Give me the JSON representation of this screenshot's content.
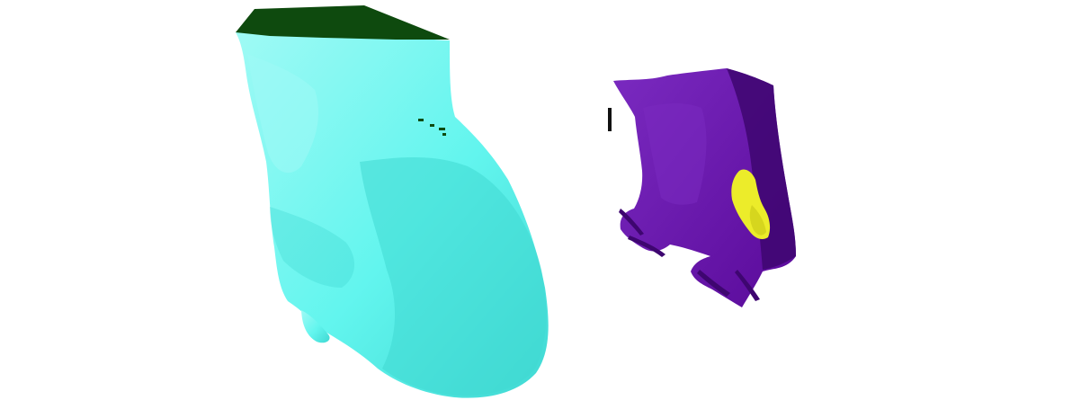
{
  "scene": {
    "background": "#ffffff",
    "left_model": {
      "body_color": "#62f5ee",
      "shade_color": "#3fd8d2",
      "highlight_color": "#9ffaf5",
      "cap_color": "#0e4a0e"
    },
    "right_model": {
      "body_color": "#5a0a9a",
      "shade_color": "#3e0670",
      "highlight_color": "#7a2ac0",
      "insert_color": "#ecec2a",
      "insert_shade": "#c8c818",
      "artifact_color": "#111111"
    }
  }
}
